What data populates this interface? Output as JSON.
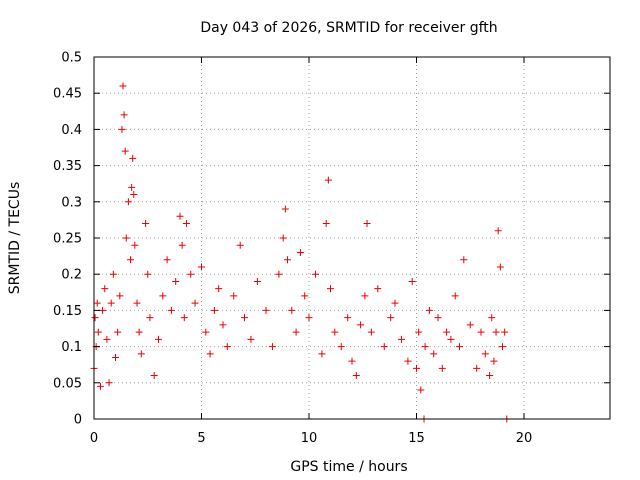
{
  "chart_data": {
    "type": "scatter",
    "title": "Day 043 of 2026, SRMTID for receiver gfth",
    "xlabel": "GPS time / hours",
    "ylabel": "SRMTID / TECUs",
    "xlim": [
      0,
      24
    ],
    "ylim": [
      0,
      0.5
    ],
    "x_ticks": [
      0,
      5,
      10,
      15,
      20
    ],
    "x_tick_labels": [
      "0",
      "5",
      "10",
      "15",
      "20"
    ],
    "y_ticks": [
      0,
      0.05,
      0.1,
      0.15,
      0.2,
      0.25,
      0.3,
      0.35,
      0.4,
      0.45,
      0.5
    ],
    "y_tick_labels": [
      "0",
      "0.05",
      "0.1",
      "0.15",
      "0.2",
      "0.25",
      "0.3",
      "0.35",
      "0.4",
      "0.45",
      "0.5"
    ],
    "grid": true,
    "marker": "plus",
    "series": [
      {
        "name": "SRMTID",
        "color": "#ee0000",
        "x": [
          0.0,
          0.05,
          0.1,
          0.15,
          0.2,
          0.3,
          0.4,
          0.5,
          0.6,
          0.7,
          0.8,
          0.9,
          1.0,
          1.1,
          1.2,
          1.3,
          1.35,
          1.4,
          1.45,
          1.5,
          1.6,
          1.7,
          1.75,
          1.8,
          1.85,
          1.9,
          2.0,
          2.1,
          2.2,
          2.4,
          2.5,
          2.6,
          2.8,
          3.0,
          3.2,
          3.4,
          3.6,
          3.8,
          4.0,
          4.1,
          4.2,
          4.3,
          4.5,
          4.7,
          5.0,
          5.2,
          5.4,
          5.6,
          5.8,
          6.0,
          6.2,
          6.5,
          6.8,
          7.0,
          7.3,
          7.6,
          8.0,
          8.3,
          8.6,
          8.8,
          8.9,
          9.0,
          9.2,
          9.4,
          9.6,
          9.8,
          10.0,
          10.3,
          10.6,
          10.8,
          10.9,
          11.0,
          11.2,
          11.5,
          11.8,
          12.0,
          12.2,
          12.4,
          12.6,
          12.7,
          12.9,
          13.2,
          13.5,
          13.8,
          14.0,
          14.3,
          14.6,
          14.8,
          15.0,
          15.1,
          15.2,
          15.4,
          15.6,
          15.8,
          16.0,
          16.2,
          16.4,
          16.6,
          16.8,
          17.0,
          17.2,
          17.5,
          17.8,
          18.0,
          18.2,
          18.4,
          18.5,
          18.6,
          18.7,
          18.8,
          18.9,
          19.0,
          19.1,
          15.35,
          19.2
        ],
        "y": [
          0.07,
          0.14,
          0.1,
          0.16,
          0.12,
          0.045,
          0.15,
          0.18,
          0.11,
          0.05,
          0.16,
          0.2,
          0.085,
          0.12,
          0.17,
          0.4,
          0.46,
          0.42,
          0.37,
          0.25,
          0.3,
          0.22,
          0.32,
          0.36,
          0.31,
          0.24,
          0.16,
          0.12,
          0.09,
          0.27,
          0.2,
          0.14,
          0.06,
          0.11,
          0.17,
          0.22,
          0.15,
          0.19,
          0.28,
          0.24,
          0.14,
          0.27,
          0.2,
          0.16,
          0.21,
          0.12,
          0.09,
          0.15,
          0.18,
          0.13,
          0.1,
          0.17,
          0.24,
          0.14,
          0.11,
          0.19,
          0.15,
          0.1,
          0.2,
          0.25,
          0.29,
          0.22,
          0.15,
          0.12,
          0.23,
          0.17,
          0.14,
          0.2,
          0.09,
          0.27,
          0.33,
          0.18,
          0.12,
          0.1,
          0.14,
          0.08,
          0.06,
          0.13,
          0.17,
          0.27,
          0.12,
          0.18,
          0.1,
          0.14,
          0.16,
          0.11,
          0.08,
          0.19,
          0.07,
          0.12,
          0.04,
          0.1,
          0.15,
          0.09,
          0.14,
          0.07,
          0.12,
          0.11,
          0.17,
          0.1,
          0.22,
          0.13,
          0.07,
          0.12,
          0.09,
          0.06,
          0.14,
          0.08,
          0.12,
          0.26,
          0.21,
          0.1,
          0.12,
          0.0,
          0.0
        ]
      }
    ]
  }
}
